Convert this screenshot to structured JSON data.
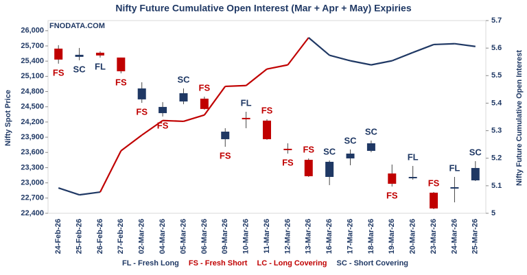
{
  "chart_data": {
    "type": "candlestick",
    "title": "Nifty Future Cumulative Open Interest (Mar + Apr + May) Expiries",
    "watermark": "FNODATA.COM",
    "y_label": "Nifty Spot Price",
    "y2_label": "Nifty Future Cumulative Open Interest",
    "categories": [
      "24-Feb-26",
      "25-Feb-26",
      "26-Feb-26",
      "27-Feb-26",
      "02-Mar-26",
      "04-Mar-26",
      "05-Mar-26",
      "06-Mar-26",
      "09-Mar-26",
      "10-Mar-26",
      "11-Mar-26",
      "12-Mar-26",
      "13-Mar-26",
      "16-Mar-26",
      "17-Mar-26",
      "18-Mar-26",
      "19-Mar-26",
      "20-Mar-26",
      "23-Mar-26",
      "24-Mar-26",
      "25-Mar-26"
    ],
    "open": [
      25647,
      25485,
      25566,
      25471,
      24646,
      24375,
      24605,
      24660,
      23861,
      24281,
      24227,
      23672,
      23455,
      23117,
      23482,
      23631,
      23185,
      23104,
      22806,
      22887,
      23049
    ],
    "high": [
      25715,
      25660,
      25593,
      25471,
      24984,
      24592,
      24862,
      24700,
      24078,
      24402,
      24254,
      23780,
      23482,
      23442,
      23658,
      23834,
      23361,
      23334,
      22820,
      23117,
      23428
    ],
    "low": [
      25350,
      25417,
      25471,
      25160,
      24578,
      24308,
      24551,
      24443,
      23712,
      24078,
      23848,
      23577,
      23117,
      22955,
      23347,
      23604,
      22928,
      23063,
      22481,
      22616,
      23036
    ],
    "close": [
      25431,
      25525,
      25512,
      25201,
      24862,
      24497,
      24768,
      24457,
      24010,
      24254,
      23861,
      23645,
      23131,
      23415,
      23577,
      23780,
      22982,
      23117,
      22495,
      22914,
      23293
    ],
    "up_color": "#1f3864",
    "down_color": "#c00000",
    "signals": [
      "FS",
      "SC",
      "FL",
      "FS",
      "FS",
      "FS",
      "SC",
      "FS",
      "FS",
      "FL",
      "FS",
      "FS",
      "FS",
      "SC",
      "SC",
      "SC",
      "FS",
      "FL",
      "FS",
      "FL",
      "SC"
    ],
    "signal_colors": {
      "FL": "#1f3864",
      "FS": "#c00000",
      "LC": "#c00000",
      "SC": "#1f3864"
    },
    "series": [
      {
        "name": "Nifty Future Cumulative Open Interest",
        "axis": "y2",
        "values": [
          5.092,
          5.067,
          5.077,
          5.227,
          5.284,
          5.337,
          5.334,
          5.357,
          5.461,
          5.464,
          5.524,
          5.539,
          5.638,
          5.574,
          5.554,
          5.539,
          5.554,
          5.584,
          5.613,
          5.616,
          5.606
        ],
        "segment_colors": [
          "#1f3864",
          "#1f3864",
          "#c00000",
          "#c00000",
          "#c00000",
          "#c00000",
          "#c00000",
          "#c00000",
          "#c00000",
          "#c00000",
          "#c00000",
          "#c00000",
          "#1f3864",
          "#1f3864",
          "#1f3864",
          "#1f3864",
          "#1f3864",
          "#1f3864",
          "#1f3864",
          "#1f3864"
        ]
      }
    ],
    "ylim": [
      22400,
      26200
    ],
    "yticks": [
      {
        "value": 22400,
        "label": "22,400"
      },
      {
        "value": 22700,
        "label": "22,700"
      },
      {
        "value": 23000,
        "label": "23,000"
      },
      {
        "value": 23300,
        "label": "23,300"
      },
      {
        "value": 23600,
        "label": "23,600"
      },
      {
        "value": 23900,
        "label": "23,900"
      },
      {
        "value": 24200,
        "label": "24,200"
      },
      {
        "value": 24500,
        "label": "24,500"
      },
      {
        "value": 24800,
        "label": "24,800"
      },
      {
        "value": 25100,
        "label": "25,100"
      },
      {
        "value": 25400,
        "label": "25,400"
      },
      {
        "value": 25700,
        "label": "25,700"
      },
      {
        "value": 26000,
        "label": "26,000"
      }
    ],
    "y2lim": [
      5,
      5.7
    ],
    "y2ticks": [
      5,
      5.1,
      5.2,
      5.3,
      5.4,
      5.5,
      5.6,
      5.7
    ],
    "legend": [
      {
        "label": "FL - Fresh Long",
        "color": "#1f3864"
      },
      {
        "label": "FS - Fresh Short",
        "color": "#c00000"
      },
      {
        "label": "LC - Long Covering",
        "color": "#c00000"
      },
      {
        "label": "SC - Short Covering",
        "color": "#1f3864"
      }
    ]
  }
}
